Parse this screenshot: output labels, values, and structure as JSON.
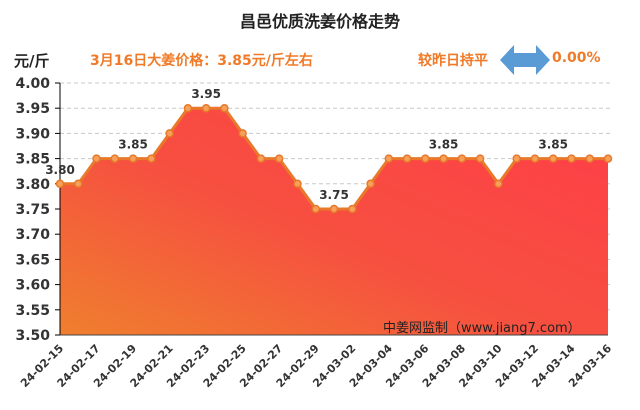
{
  "header": {
    "unit": "元/斤",
    "price_text": "3月16日大姜价格：3.85元/斤左右",
    "compare_text": "较昨日持平",
    "change_pct": "0.00%",
    "change_icon": "left-right-arrow-icon",
    "arrow_color": "#5b9bd5"
  },
  "watermark": "中姜网监制（www.jiang7.com）",
  "colors": {
    "line": "#e8792a",
    "fill_top": "#ff4045",
    "fill_bottom": "#f07a30"
  },
  "chart_data": {
    "type": "area",
    "title": "昌邑优质洗姜价格走势",
    "xlabel": "",
    "ylabel": "元/斤",
    "ylim": [
      3.5,
      4.0
    ],
    "yticks": [
      "4.00",
      "3.95",
      "3.90",
      "3.85",
      "3.80",
      "3.75",
      "3.70",
      "3.65",
      "3.60",
      "3.55",
      "3.50"
    ],
    "x": [
      "24-02-15",
      "24-02-16",
      "24-02-17",
      "24-02-18",
      "24-02-19",
      "24-02-20",
      "24-02-21",
      "24-02-22",
      "24-02-23",
      "24-02-24",
      "24-02-25",
      "24-02-26",
      "24-02-27",
      "24-02-28",
      "24-02-29",
      "24-03-01",
      "24-03-02",
      "24-03-03",
      "24-03-04",
      "24-03-05",
      "24-03-06",
      "24-03-07",
      "24-03-08",
      "24-03-09",
      "24-03-10",
      "24-03-11",
      "24-03-12",
      "24-03-13",
      "24-03-14",
      "24-03-15",
      "24-03-16"
    ],
    "values": [
      3.8,
      3.8,
      3.85,
      3.85,
      3.85,
      3.85,
      3.9,
      3.95,
      3.95,
      3.95,
      3.9,
      3.85,
      3.85,
      3.8,
      3.75,
      3.75,
      3.75,
      3.8,
      3.85,
      3.85,
      3.85,
      3.85,
      3.85,
      3.85,
      3.8,
      3.85,
      3.85,
      3.85,
      3.85,
      3.85,
      3.85
    ],
    "xtick_labels_every": 2,
    "data_labels": [
      {
        "index": 0,
        "text": "3.80"
      },
      {
        "index": 4,
        "text": "3.85"
      },
      {
        "index": 8,
        "text": "3.95"
      },
      {
        "index": 15,
        "text": "3.75"
      },
      {
        "index": 21,
        "text": "3.85"
      },
      {
        "index": 27,
        "text": "3.85"
      }
    ],
    "grid": true,
    "legend": "none"
  }
}
